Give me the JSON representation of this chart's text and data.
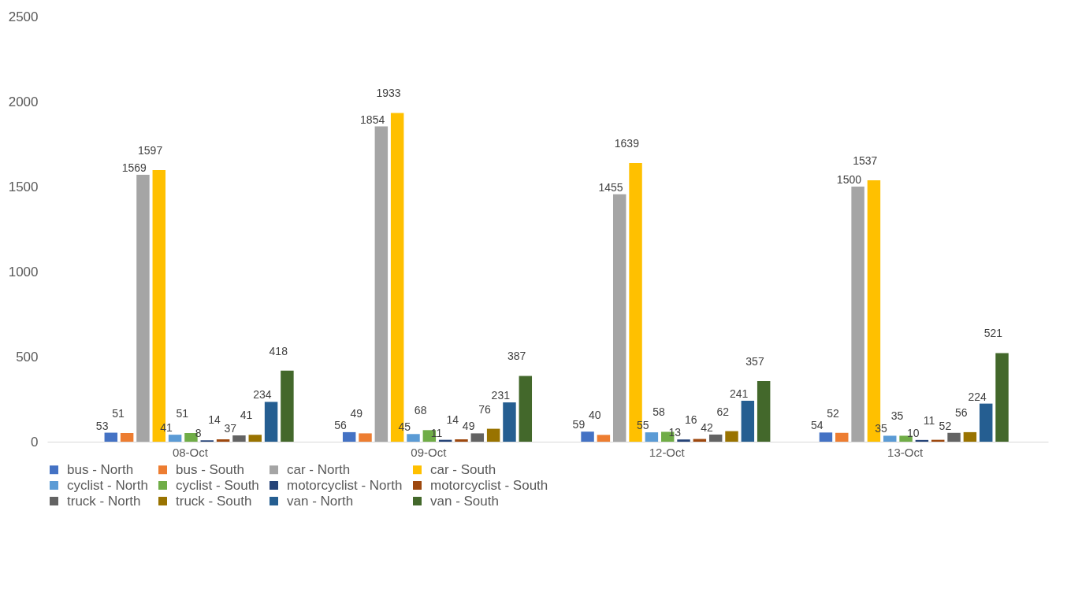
{
  "chart_data": {
    "type": "bar",
    "categories": [
      "08-Oct",
      "09-Oct",
      "12-Oct",
      "13-Oct"
    ],
    "series": [
      {
        "name": "bus - North",
        "color": "#4472c4",
        "values": [
          53,
          56,
          59,
          54
        ]
      },
      {
        "name": "bus - South",
        "color": "#ed7d31",
        "values": [
          51,
          49,
          40,
          52
        ]
      },
      {
        "name": "car - North",
        "color": "#a5a5a5",
        "values": [
          1569,
          1854,
          1455,
          1500
        ]
      },
      {
        "name": "car - South",
        "color": "#ffc000",
        "values": [
          1597,
          1933,
          1639,
          1537
        ]
      },
      {
        "name": "cyclist - North",
        "color": "#5b9bd5",
        "values": [
          41,
          45,
          55,
          35
        ]
      },
      {
        "name": "cyclist - South",
        "color": "#70ad47",
        "values": [
          51,
          68,
          58,
          35
        ]
      },
      {
        "name": "motorcyclist - North",
        "color": "#264478",
        "values": [
          8,
          11,
          13,
          10
        ]
      },
      {
        "name": "motorcyclist - South",
        "color": "#9e480e",
        "values": [
          14,
          14,
          16,
          11
        ]
      },
      {
        "name": "truck - North",
        "color": "#636363",
        "values": [
          37,
          49,
          42,
          52
        ]
      },
      {
        "name": "truck - South",
        "color": "#997300",
        "values": [
          41,
          76,
          62,
          56
        ]
      },
      {
        "name": "van - North",
        "color": "#255e91",
        "values": [
          234,
          231,
          241,
          224
        ]
      },
      {
        "name": "van - South",
        "color": "#43682b",
        "values": [
          418,
          387,
          357,
          521
        ]
      }
    ],
    "ylim": [
      0,
      2500
    ],
    "yticks": [
      0,
      500,
      1000,
      1500,
      2000,
      2500
    ],
    "data_labels": true,
    "legend": "bottom"
  }
}
